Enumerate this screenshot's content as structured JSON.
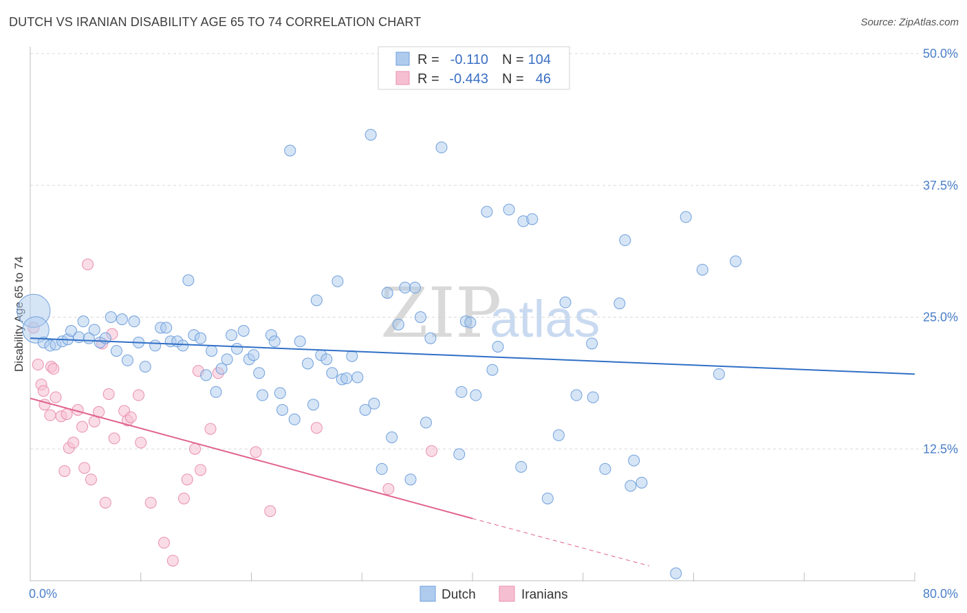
{
  "title": "DUTCH VS IRANIAN DISABILITY AGE 65 TO 74 CORRELATION CHART",
  "source": "Source: ZipAtlas.com",
  "watermark": {
    "zip": "ZIP",
    "atlas": "atlas"
  },
  "colors": {
    "dutch_fill": "#aecbee",
    "dutch_stroke": "#6f9fdc",
    "dutch_line": "#2f6fc6",
    "iranian_fill": "#f6bfd1",
    "iranian_stroke": "#e98fad",
    "iranian_line": "#e0628d",
    "grid": "#d8d8d8",
    "tick_text": "#4a7fc8"
  },
  "legend": {
    "rows": [
      {
        "r_label": "R =",
        "r_value": "-0.110",
        "n_label": "N =",
        "n_value": "104"
      },
      {
        "r_label": "R =",
        "r_value": "-0.443",
        "n_label": "N =",
        "n_value": "46"
      }
    ]
  },
  "bottom_legend": {
    "dutch": "Dutch",
    "iranians": "Iranians"
  },
  "chart_data": {
    "type": "scatter",
    "title": "DUTCH VS IRANIAN DISABILITY AGE 65 TO 74 CORRELATION CHART",
    "xlabel": "",
    "ylabel": "Disability Age 65 to 74",
    "xlim": [
      0,
      80
    ],
    "ylim": [
      0,
      50
    ],
    "x_tick_labels": [
      "0.0%",
      "80.0%"
    ],
    "y_ticks": [
      12.5,
      25.0,
      37.5,
      50.0
    ],
    "y_tick_labels": [
      "12.5%",
      "25.0%",
      "37.5%",
      "50.0%"
    ],
    "series": [
      {
        "name": "Dutch",
        "R": -0.11,
        "N": 104,
        "trend": {
          "x0": 0,
          "y0": 23.0,
          "x1": 80,
          "y1": 19.6
        },
        "points": [
          [
            0.3,
            25.6,
            3
          ],
          [
            0.5,
            23.8,
            2.4
          ],
          [
            1.2,
            22.6,
            1
          ],
          [
            1.8,
            22.3,
            1
          ],
          [
            2.3,
            22.4,
            1
          ],
          [
            2.9,
            22.7,
            1
          ],
          [
            3.4,
            22.9,
            1
          ],
          [
            3.7,
            23.7,
            1
          ],
          [
            4.4,
            23.1,
            1
          ],
          [
            4.8,
            24.6,
            1
          ],
          [
            5.3,
            23.0,
            1
          ],
          [
            5.8,
            23.8,
            1
          ],
          [
            6.3,
            22.6,
            1
          ],
          [
            6.8,
            23.0,
            1
          ],
          [
            7.3,
            25.0,
            1
          ],
          [
            7.8,
            21.8,
            1
          ],
          [
            8.3,
            24.8,
            1
          ],
          [
            8.8,
            20.9,
            1
          ],
          [
            9.4,
            24.6,
            1
          ],
          [
            9.8,
            22.6,
            1
          ],
          [
            10.4,
            20.3,
            1
          ],
          [
            11.3,
            22.3,
            1
          ],
          [
            11.8,
            24.0,
            1
          ],
          [
            12.3,
            24.0,
            1
          ],
          [
            12.7,
            22.7,
            1
          ],
          [
            13.3,
            22.7,
            1
          ],
          [
            13.8,
            22.3,
            1
          ],
          [
            14.3,
            28.5,
            1
          ],
          [
            14.8,
            23.3,
            1
          ],
          [
            15.4,
            23.0,
            1
          ],
          [
            15.9,
            19.5,
            1
          ],
          [
            16.4,
            21.8,
            1
          ],
          [
            16.8,
            17.9,
            1
          ],
          [
            17.3,
            20.1,
            1
          ],
          [
            17.8,
            21.0,
            1
          ],
          [
            18.2,
            23.3,
            1
          ],
          [
            18.7,
            22.0,
            1
          ],
          [
            19.3,
            23.7,
            1
          ],
          [
            19.8,
            21.0,
            1
          ],
          [
            20.2,
            21.4,
            1
          ],
          [
            20.7,
            19.7,
            1
          ],
          [
            21.0,
            17.6,
            1
          ],
          [
            21.8,
            23.3,
            1
          ],
          [
            22.1,
            22.7,
            1
          ],
          [
            22.6,
            17.8,
            1
          ],
          [
            22.8,
            16.2,
            1
          ],
          [
            23.5,
            40.8,
            1
          ],
          [
            23.9,
            15.3,
            1
          ],
          [
            24.4,
            22.7,
            1
          ],
          [
            25.1,
            20.6,
            1
          ],
          [
            25.6,
            16.7,
            1
          ],
          [
            25.9,
            26.6,
            1
          ],
          [
            26.3,
            21.4,
            1
          ],
          [
            26.8,
            21.0,
            1
          ],
          [
            27.3,
            19.7,
            1
          ],
          [
            27.8,
            28.4,
            1
          ],
          [
            28.2,
            19.1,
            1
          ],
          [
            28.6,
            19.2,
            1
          ],
          [
            29.1,
            21.3,
            1
          ],
          [
            29.6,
            19.3,
            1
          ],
          [
            30.3,
            16.2,
            1
          ],
          [
            30.8,
            42.3,
            1
          ],
          [
            31.1,
            16.8,
            1
          ],
          [
            31.8,
            10.6,
            1
          ],
          [
            32.3,
            27.3,
            1
          ],
          [
            32.7,
            13.6,
            1
          ],
          [
            33.3,
            24.3,
            1
          ],
          [
            33.9,
            27.8,
            1
          ],
          [
            34.4,
            9.6,
            1
          ],
          [
            34.8,
            27.8,
            1
          ],
          [
            35.3,
            25.0,
            1
          ],
          [
            35.8,
            15.0,
            1
          ],
          [
            36.2,
            23.0,
            1
          ],
          [
            37.2,
            41.1,
            1
          ],
          [
            38.8,
            12.0,
            1
          ],
          [
            39.0,
            17.9,
            1
          ],
          [
            39.4,
            24.6,
            1
          ],
          [
            39.8,
            24.5,
            1
          ],
          [
            40.3,
            17.6,
            1
          ],
          [
            41.3,
            35.0,
            1
          ],
          [
            41.8,
            20.0,
            1
          ],
          [
            42.3,
            22.2,
            1
          ],
          [
            43.3,
            35.2,
            1
          ],
          [
            44.4,
            10.8,
            1
          ],
          [
            44.6,
            34.1,
            1
          ],
          [
            45.4,
            34.3,
            1
          ],
          [
            46.8,
            7.8,
            1
          ],
          [
            47.8,
            13.8,
            1
          ],
          [
            48.4,
            26.4,
            1
          ],
          [
            49.4,
            17.6,
            1
          ],
          [
            50.8,
            22.5,
            1
          ],
          [
            50.9,
            17.4,
            1
          ],
          [
            52.0,
            10.6,
            1
          ],
          [
            53.3,
            26.3,
            1
          ],
          [
            53.8,
            32.3,
            1
          ],
          [
            54.3,
            9.0,
            1
          ],
          [
            54.6,
            11.4,
            1
          ],
          [
            55.3,
            9.3,
            1
          ],
          [
            58.4,
            0.7,
            1
          ],
          [
            59.3,
            34.5,
            1
          ],
          [
            60.8,
            29.5,
            1
          ],
          [
            62.3,
            19.6,
            1
          ],
          [
            63.8,
            30.3,
            1
          ]
        ]
      },
      {
        "name": "Iranians",
        "R": -0.443,
        "N": 46,
        "trend": {
          "x0": 0,
          "y0": 17.3,
          "x1": 40,
          "y1": 5.9
        },
        "trend_dashed": {
          "x0": 40,
          "y0": 5.9,
          "x1": 56,
          "y1": 1.4
        },
        "points": [
          [
            0.3,
            24.0,
            1
          ],
          [
            0.7,
            20.5,
            1
          ],
          [
            1.0,
            18.6,
            1
          ],
          [
            1.2,
            18.0,
            1
          ],
          [
            1.3,
            16.7,
            1
          ],
          [
            1.8,
            15.7,
            1
          ],
          [
            1.9,
            20.3,
            1
          ],
          [
            2.1,
            20.1,
            1
          ],
          [
            2.3,
            17.4,
            1
          ],
          [
            2.8,
            15.6,
            1
          ],
          [
            3.1,
            10.4,
            1
          ],
          [
            3.3,
            15.8,
            1
          ],
          [
            3.5,
            12.6,
            1
          ],
          [
            3.9,
            13.1,
            1
          ],
          [
            4.3,
            16.2,
            1
          ],
          [
            4.7,
            14.6,
            1
          ],
          [
            4.9,
            10.7,
            1
          ],
          [
            5.2,
            30.0,
            1
          ],
          [
            5.5,
            9.6,
            1
          ],
          [
            5.8,
            15.1,
            1
          ],
          [
            6.2,
            16.0,
            1
          ],
          [
            6.5,
            22.5,
            1
          ],
          [
            6.8,
            7.4,
            1
          ],
          [
            7.1,
            17.7,
            1
          ],
          [
            7.4,
            23.4,
            1
          ],
          [
            7.6,
            13.5,
            1
          ],
          [
            8.5,
            16.1,
            1
          ],
          [
            8.8,
            15.2,
            1
          ],
          [
            9.1,
            15.5,
            1
          ],
          [
            9.8,
            17.6,
            1
          ],
          [
            10.0,
            13.1,
            1
          ],
          [
            10.9,
            7.4,
            1
          ],
          [
            12.1,
            3.6,
            1
          ],
          [
            12.9,
            1.9,
            1
          ],
          [
            13.9,
            7.8,
            1
          ],
          [
            14.2,
            9.6,
            1
          ],
          [
            14.9,
            12.5,
            1
          ],
          [
            15.2,
            19.9,
            1
          ],
          [
            15.4,
            10.5,
            1
          ],
          [
            16.3,
            14.4,
            1
          ],
          [
            17.0,
            19.7,
            1
          ],
          [
            20.4,
            12.2,
            1
          ],
          [
            21.7,
            6.6,
            1
          ],
          [
            25.9,
            14.5,
            1
          ],
          [
            32.4,
            8.7,
            1
          ],
          [
            36.3,
            12.3,
            1
          ]
        ]
      }
    ]
  }
}
